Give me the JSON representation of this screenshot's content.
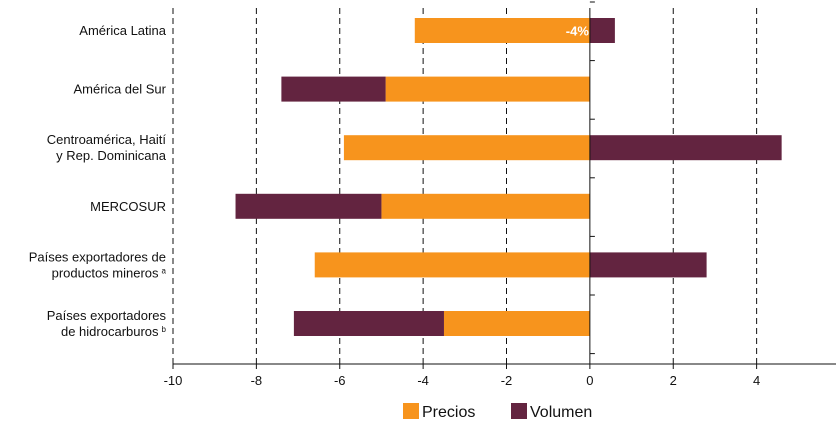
{
  "chart_data": {
    "type": "bar",
    "orientation": "horizontal",
    "stacked": true,
    "categories": [
      [
        "América Latina"
      ],
      [
        "América del Sur"
      ],
      [
        "Centroamérica, Haití",
        "y Rep. Dominicana"
      ],
      [
        "MERCOSUR"
      ],
      [
        "Países exportadores de",
        "productos mineros"
      ],
      [
        "Países exportadores",
        "de hidrocarburos"
      ]
    ],
    "footnote_marks": [
      "",
      "",
      "",
      "",
      "a",
      "b"
    ],
    "series": [
      {
        "name": "Precios",
        "color": "#F7941D",
        "values": [
          -4.2,
          -4.9,
          -5.9,
          -5.0,
          -6.6,
          -3.5
        ]
      },
      {
        "name": "Volumen",
        "color": "#632440",
        "values": [
          0.6,
          -2.5,
          4.6,
          -3.5,
          2.8,
          -3.6
        ]
      }
    ],
    "data_labels": [
      {
        "category_index": 0,
        "text": "-4%",
        "at_value": -0.3
      }
    ],
    "xlim": [
      -10,
      6
    ],
    "xticks": [
      -10,
      -8,
      -6,
      -4,
      -2,
      0,
      2,
      4,
      6
    ],
    "grid": "vertical dashed",
    "legend": "bottom",
    "title": "",
    "xlabel": "",
    "ylabel": ""
  }
}
